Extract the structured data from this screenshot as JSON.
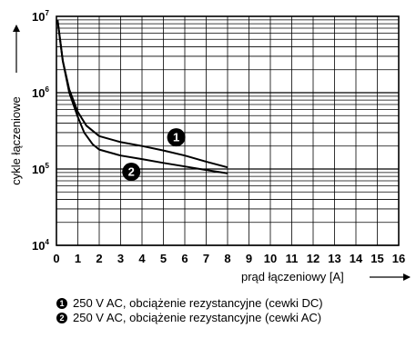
{
  "chart_data": {
    "type": "line",
    "ylabel": "cykle łączeniowe",
    "xlabel": "prąd łączeniowy [A]",
    "x_ticks": [
      "0",
      "1",
      "2",
      "3",
      "4",
      "5",
      "6",
      "7",
      "8",
      "9",
      "10",
      "11",
      "12",
      "13",
      "14",
      "15",
      "16"
    ],
    "xlim": [
      0,
      16
    ],
    "y_scale": "log",
    "ylim": [
      10000,
      10000000
    ],
    "y_ticks": [
      {
        "base": "10",
        "exp": "4",
        "value": 10000
      },
      {
        "base": "10",
        "exp": "5",
        "value": 100000
      },
      {
        "base": "10",
        "exp": "6",
        "value": 1000000
      },
      {
        "base": "10",
        "exp": "7",
        "value": 10000000
      }
    ],
    "grid": true,
    "series": [
      {
        "marker": "1",
        "x": [
          0.05,
          0.3,
          0.6,
          1.0,
          1.4,
          2.0,
          3.0,
          4.0,
          5.0,
          6.0,
          7.0,
          8.0
        ],
        "y": [
          9000000,
          2600000,
          1100000,
          560000,
          370000,
          270000,
          225000,
          200000,
          175000,
          150000,
          125000,
          105000
        ]
      },
      {
        "marker": "2",
        "x": [
          0.05,
          0.3,
          0.6,
          1.0,
          1.3,
          1.7,
          2.0,
          3.0,
          4.0,
          5.0,
          6.0,
          7.0,
          8.0
        ],
        "y": [
          9000000,
          2600000,
          1000000,
          480000,
          300000,
          210000,
          180000,
          150000,
          135000,
          120000,
          108000,
          97000,
          88000
        ]
      }
    ],
    "legend": [
      {
        "marker": "1",
        "text": "250 V AC, obciążenie rezystancyjne (cewki DC)"
      },
      {
        "marker": "2",
        "text": "250 V AC, obciążenie rezystancyjne (cewki AC)"
      }
    ],
    "legend_position": "bottom"
  }
}
